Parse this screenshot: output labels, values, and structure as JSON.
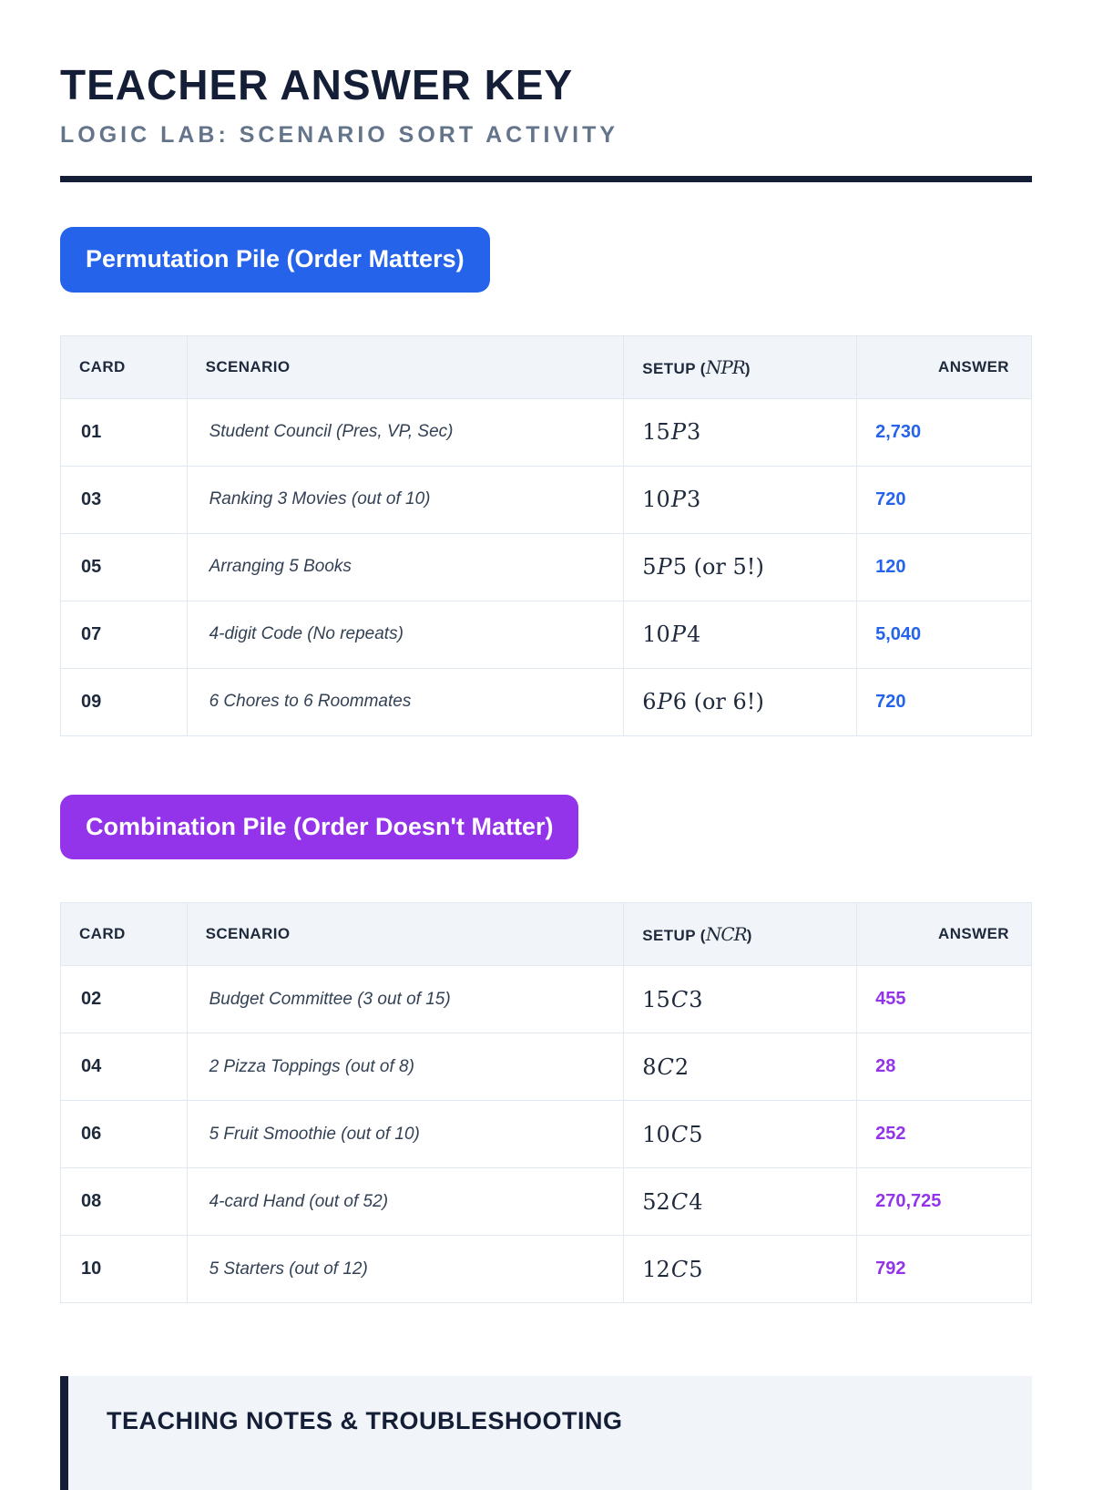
{
  "header": {
    "title": "TEACHER ANSWER KEY",
    "subtitle": "LOGIC LAB: SCENARIO SORT ACTIVITY"
  },
  "colors": {
    "permutation_accent": "#2563eb",
    "combination_accent": "#9333ea",
    "ink": "#141e36"
  },
  "permutation": {
    "badge": "Permutation Pile (Order Matters)",
    "columns": {
      "card": "CARD",
      "scenario": "SCENARIO",
      "setup_prefix": "SETUP (",
      "setup_notation": "NPR",
      "setup_suffix": ")",
      "answer": "ANSWER"
    },
    "rows": [
      {
        "card": "01",
        "scenario": "Student Council (Pres, VP, Sec)",
        "setup_n": "15",
        "setup_op": "P",
        "setup_r": "3",
        "setup_note": "",
        "answer": "2,730"
      },
      {
        "card": "03",
        "scenario": "Ranking 3 Movies (out of 10)",
        "setup_n": "10",
        "setup_op": "P",
        "setup_r": "3",
        "setup_note": "",
        "answer": "720"
      },
      {
        "card": "05",
        "scenario": "Arranging 5 Books",
        "setup_n": "5",
        "setup_op": "P",
        "setup_r": "5",
        "setup_note": " (or 5!)",
        "answer": "120"
      },
      {
        "card": "07",
        "scenario": "4-digit Code (No repeats)",
        "setup_n": "10",
        "setup_op": "P",
        "setup_r": "4",
        "setup_note": "",
        "answer": "5,040"
      },
      {
        "card": "09",
        "scenario": "6 Chores to 6 Roommates",
        "setup_n": "6",
        "setup_op": "P",
        "setup_r": "6",
        "setup_note": " (or 6!)",
        "answer": "720"
      }
    ]
  },
  "combination": {
    "badge": "Combination Pile (Order Doesn't Matter)",
    "columns": {
      "card": "CARD",
      "scenario": "SCENARIO",
      "setup_prefix": "SETUP (",
      "setup_notation": "NCR",
      "setup_suffix": ")",
      "answer": "ANSWER"
    },
    "rows": [
      {
        "card": "02",
        "scenario": "Budget Committee (3 out of 15)",
        "setup_n": "15",
        "setup_op": "C",
        "setup_r": "3",
        "setup_note": "",
        "answer": "455"
      },
      {
        "card": "04",
        "scenario": "2 Pizza Toppings (out of 8)",
        "setup_n": "8",
        "setup_op": "C",
        "setup_r": "2",
        "setup_note": "",
        "answer": "28"
      },
      {
        "card": "06",
        "scenario": "5 Fruit Smoothie (out of 10)",
        "setup_n": "10",
        "setup_op": "C",
        "setup_r": "5",
        "setup_note": "",
        "answer": "252"
      },
      {
        "card": "08",
        "scenario": "4-card Hand (out of 52)",
        "setup_n": "52",
        "setup_op": "C",
        "setup_r": "4",
        "setup_note": "",
        "answer": "270,725"
      },
      {
        "card": "10",
        "scenario": "5 Starters (out of 12)",
        "setup_n": "12",
        "setup_op": "C",
        "setup_r": "5",
        "setup_note": "",
        "answer": "792"
      }
    ]
  },
  "notes": {
    "heading": "TEACHING NOTES & TROUBLESHOOTING"
  }
}
